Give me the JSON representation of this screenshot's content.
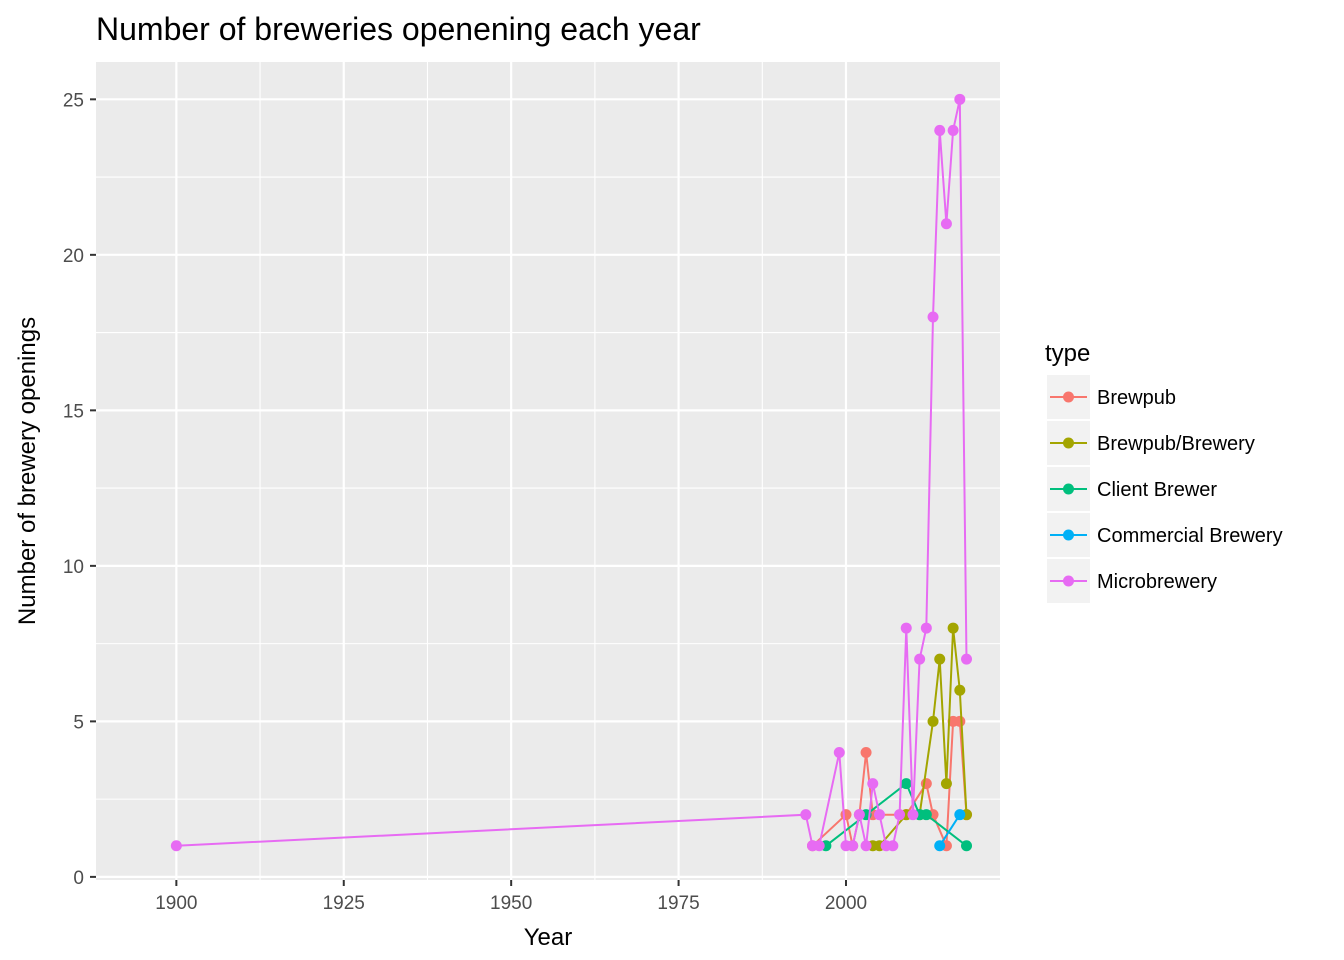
{
  "chart_data": {
    "type": "line",
    "title": "Number of breweries openening each year",
    "xlabel": "Year",
    "ylabel": "Number of brewery openings",
    "xlim": [
      1888,
      2023
    ],
    "ylim": [
      -0.1,
      26.2
    ],
    "x_ticks": [
      1900,
      1925,
      1950,
      1975,
      2000
    ],
    "y_ticks": [
      0,
      5,
      10,
      15,
      20,
      25
    ],
    "x_tick_labels": [
      "1900",
      "1925",
      "1950",
      "1975",
      "2000"
    ],
    "y_tick_labels": [
      "0",
      "5",
      "10",
      "15",
      "20",
      "25"
    ],
    "grid": true,
    "legend": {
      "title": "type",
      "position": "right"
    },
    "series": [
      {
        "name": "Brewpub",
        "color": "#F8766D",
        "points": [
          [
            1995,
            1
          ],
          [
            2000,
            2
          ],
          [
            2001,
            1
          ],
          [
            2002,
            2
          ],
          [
            2003,
            4
          ],
          [
            2004,
            2
          ],
          [
            2009,
            2
          ],
          [
            2012,
            3
          ],
          [
            2013,
            2
          ],
          [
            2015,
            1
          ],
          [
            2016,
            5
          ],
          [
            2017,
            5
          ],
          [
            2018,
            2
          ]
        ]
      },
      {
        "name": "Brewpub/Brewery",
        "color": "#A3A500",
        "points": [
          [
            2004,
            1
          ],
          [
            2005,
            1
          ],
          [
            2009,
            2
          ],
          [
            2011,
            2
          ],
          [
            2013,
            5
          ],
          [
            2014,
            7
          ],
          [
            2015,
            3
          ],
          [
            2016,
            8
          ],
          [
            2017,
            6
          ],
          [
            2018,
            2
          ]
        ]
      },
      {
        "name": "Client Brewer",
        "color": "#00BF7D",
        "points": [
          [
            1997,
            1
          ],
          [
            2003,
            2
          ],
          [
            2009,
            3
          ],
          [
            2011,
            2
          ],
          [
            2012,
            2
          ],
          [
            2018,
            1
          ]
        ]
      },
      {
        "name": "Commercial Brewery",
        "color": "#00B0F6",
        "points": [
          [
            2014,
            1
          ],
          [
            2017,
            2
          ]
        ]
      },
      {
        "name": "Microbrewery",
        "color": "#E76BF3",
        "points": [
          [
            1900,
            1
          ],
          [
            1994,
            2
          ],
          [
            1995,
            1
          ],
          [
            1996,
            1
          ],
          [
            1999,
            4
          ],
          [
            2000,
            1
          ],
          [
            2001,
            1
          ],
          [
            2002,
            2
          ],
          [
            2003,
            1
          ],
          [
            2004,
            3
          ],
          [
            2005,
            2
          ],
          [
            2006,
            1
          ],
          [
            2007,
            1
          ],
          [
            2008,
            2
          ],
          [
            2009,
            8
          ],
          [
            2010,
            2
          ],
          [
            2011,
            7
          ],
          [
            2012,
            8
          ],
          [
            2013,
            18
          ],
          [
            2014,
            24
          ],
          [
            2015,
            21
          ],
          [
            2016,
            24
          ],
          [
            2017,
            25
          ],
          [
            2018,
            7
          ]
        ]
      }
    ]
  }
}
